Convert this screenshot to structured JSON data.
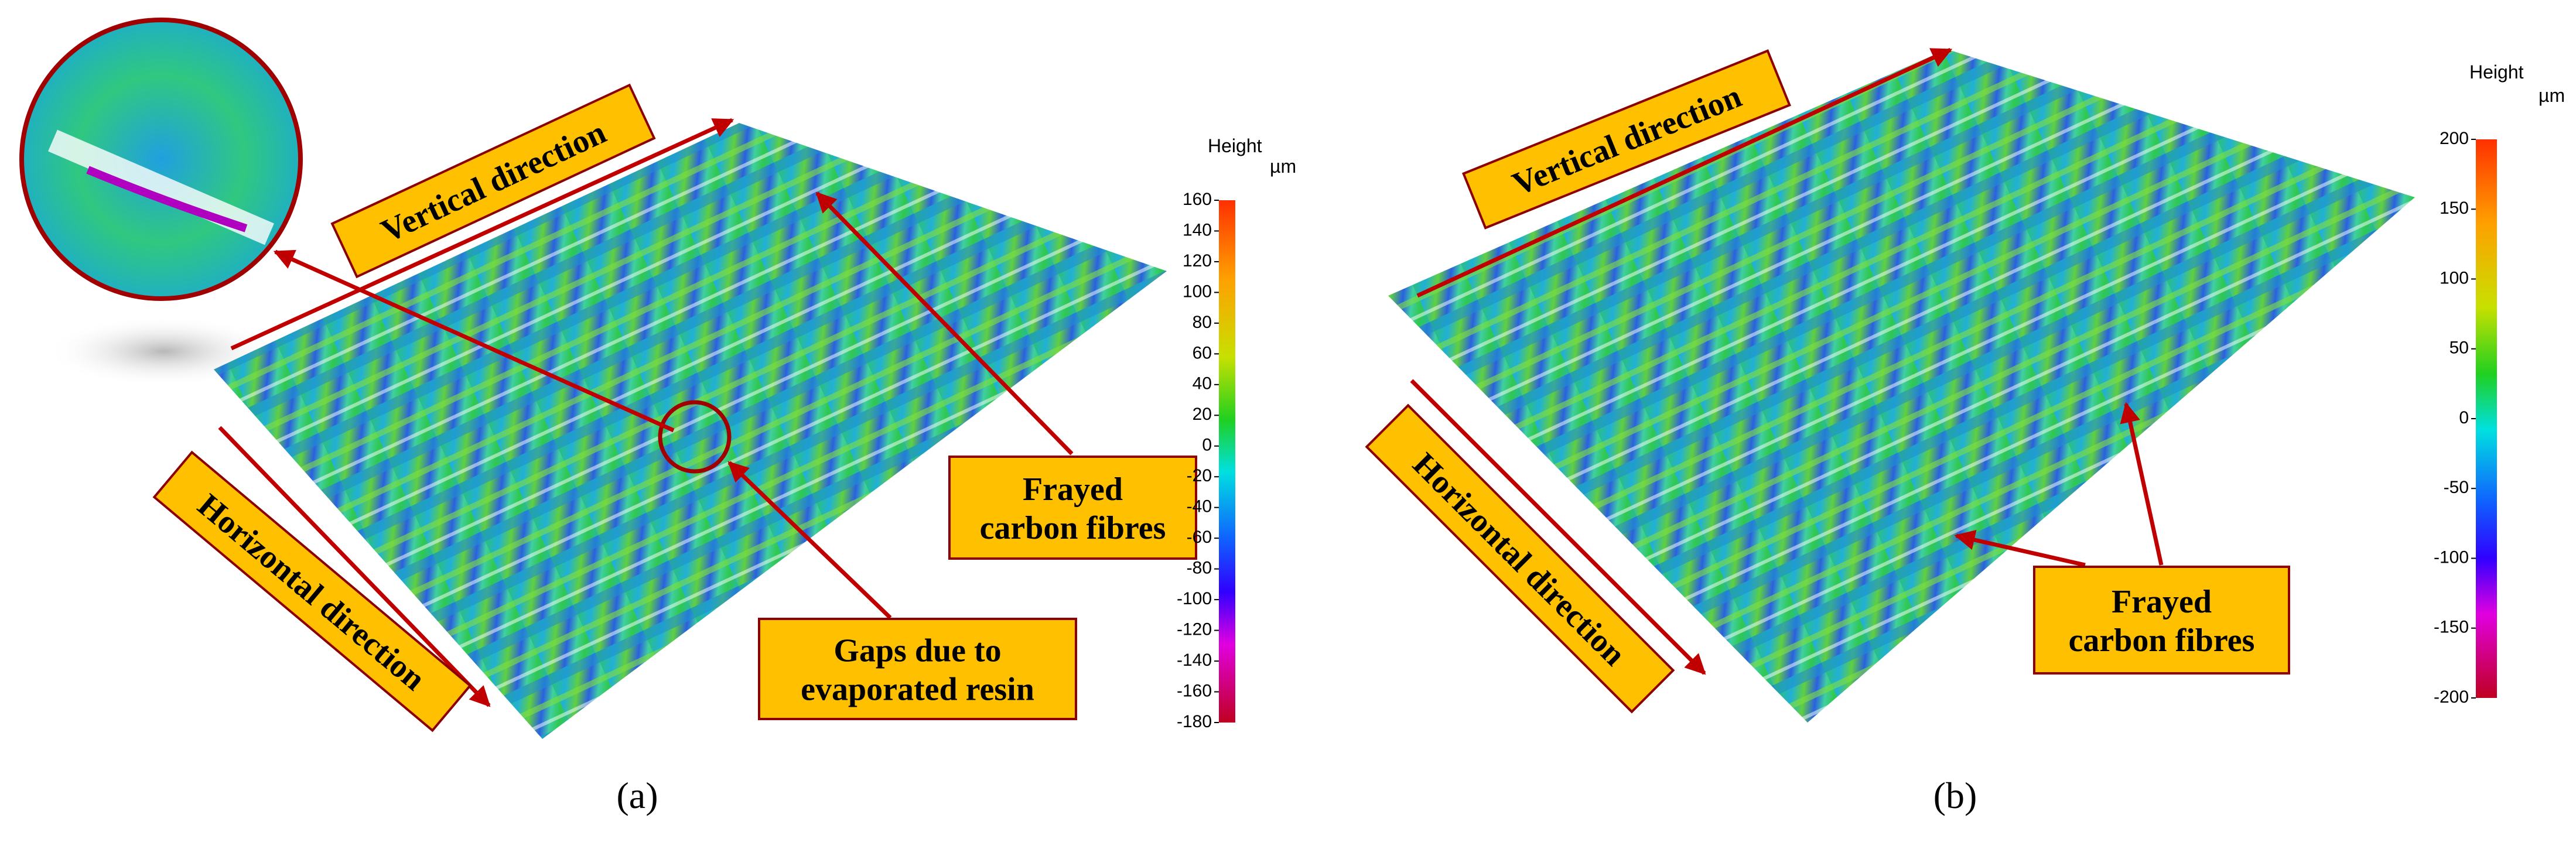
{
  "panels": [
    {
      "caption": "(a)",
      "vertical_label": "Vertical direction",
      "horizontal_label": "Horizontal direction",
      "callouts": [
        [
          "Frayed",
          "carbon fibres"
        ],
        [
          "Gaps due to",
          "evaporated resin"
        ]
      ],
      "colorbar": {
        "title": "Height",
        "unit": "µm",
        "ticks": [
          160,
          140,
          120,
          100,
          80,
          60,
          40,
          20,
          0,
          -20,
          -40,
          -60,
          -80,
          -100,
          -120,
          -140,
          -160,
          -180
        ]
      }
    },
    {
      "caption": "(b)",
      "vertical_label": "Vertical direction",
      "horizontal_label": "Horizontal direction",
      "callouts": [
        [
          "Frayed",
          "carbon fibres"
        ]
      ],
      "colorbar": {
        "title": "Height",
        "unit": "µm",
        "ticks": [
          200,
          150,
          100,
          50,
          0,
          -50,
          -100,
          -150,
          -200
        ]
      }
    }
  ]
}
